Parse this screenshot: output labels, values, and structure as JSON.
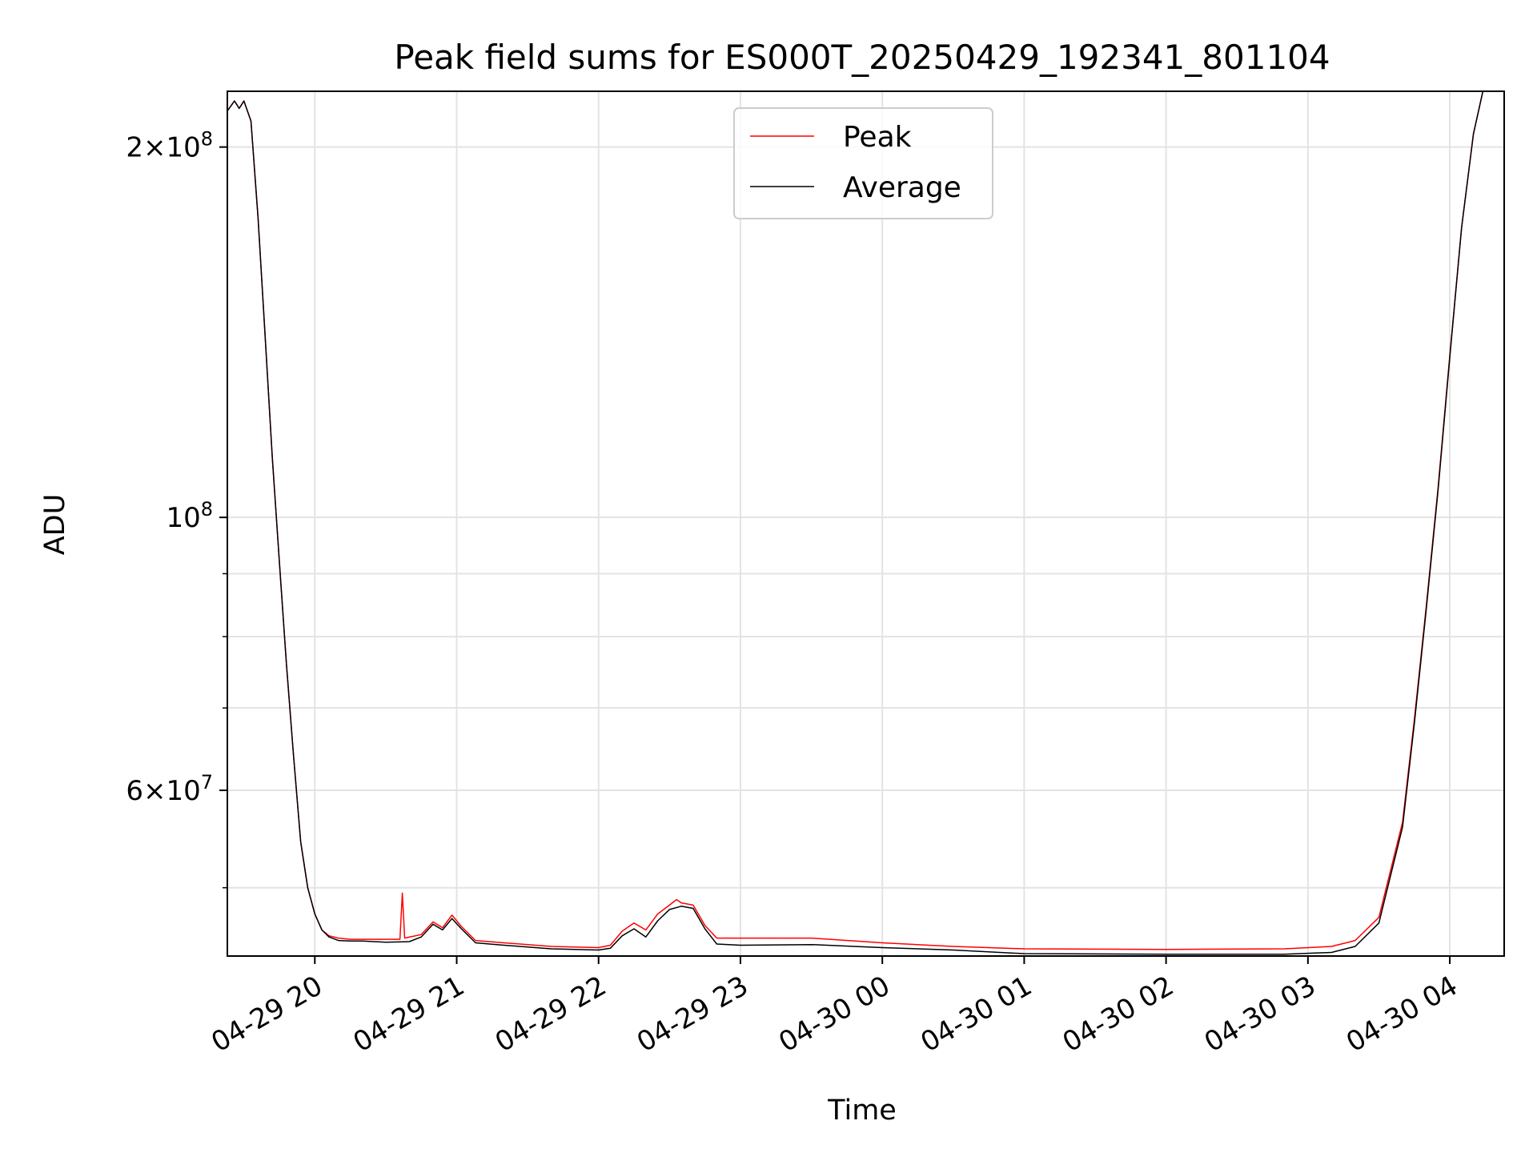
{
  "chart_data": {
    "type": "line",
    "title": "Peak field sums for ES000T_20250429_192341_801104",
    "xlabel": "Time",
    "ylabel": "ADU",
    "x_axis_type": "time",
    "xlim": [
      "2025-04-29 19:23",
      "2025-04-30 04:23"
    ],
    "ylim": [
      44000000,
      222000000
    ],
    "yscale": "log",
    "grid": true,
    "x_ticks": [
      "04-29 20",
      "04-29 21",
      "04-29 22",
      "04-29 23",
      "04-30 00",
      "04-30 01",
      "04-30 02",
      "04-30 03",
      "04-30 04"
    ],
    "x_tick_times": [
      "2025-04-29 20:00",
      "2025-04-29 21:00",
      "2025-04-29 22:00",
      "2025-04-29 23:00",
      "2025-04-30 00:00",
      "2025-04-30 01:00",
      "2025-04-30 02:00",
      "2025-04-30 03:00",
      "2025-04-30 04:00"
    ],
    "y_major_ticks": [
      {
        "value": 200000000,
        "mantissa": "2",
        "exponent": "8"
      },
      {
        "value": 100000000,
        "mantissa": "",
        "exponent": "8"
      },
      {
        "value": 60000000,
        "mantissa": "6",
        "exponent": "7"
      }
    ],
    "y_minor_ticks": [
      50000000,
      70000000,
      80000000,
      90000000
    ],
    "legend": {
      "position": "upper center",
      "entries": [
        {
          "label": "Peak",
          "color": "#ff0000"
        },
        {
          "label": "Average",
          "color": "#000000"
        }
      ]
    },
    "series": [
      {
        "name": "Average",
        "color": "#000000",
        "x": [
          "2025-04-29 19:23",
          "2025-04-29 19:26",
          "2025-04-29 19:28",
          "2025-04-29 19:30",
          "2025-04-29 19:33",
          "2025-04-29 19:36",
          "2025-04-29 19:39",
          "2025-04-29 19:42",
          "2025-04-29 19:45",
          "2025-04-29 19:48",
          "2025-04-29 19:51",
          "2025-04-29 19:54",
          "2025-04-29 19:57",
          "2025-04-29 20:00",
          "2025-04-29 20:03",
          "2025-04-29 20:06",
          "2025-04-29 20:10",
          "2025-04-29 20:15",
          "2025-04-29 20:20",
          "2025-04-29 20:30",
          "2025-04-29 20:40",
          "2025-04-29 20:45",
          "2025-04-29 20:50",
          "2025-04-29 20:54",
          "2025-04-29 20:58",
          "2025-04-29 21:02",
          "2025-04-29 21:08",
          "2025-04-29 21:20",
          "2025-04-29 21:40",
          "2025-04-29 22:00",
          "2025-04-29 22:05",
          "2025-04-29 22:10",
          "2025-04-29 22:15",
          "2025-04-29 22:20",
          "2025-04-29 22:25",
          "2025-04-29 22:30",
          "2025-04-29 22:35",
          "2025-04-29 22:40",
          "2025-04-29 22:45",
          "2025-04-29 22:50",
          "2025-04-29 23:00",
          "2025-04-29 23:30",
          "2025-04-30 00:00",
          "2025-04-30 00:30",
          "2025-04-30 01:00",
          "2025-04-30 02:00",
          "2025-04-30 02:50",
          "2025-04-30 03:10",
          "2025-04-30 03:20",
          "2025-04-30 03:30",
          "2025-04-30 03:40",
          "2025-04-30 03:45",
          "2025-04-30 03:50",
          "2025-04-30 03:55",
          "2025-04-30 04:00",
          "2025-04-30 04:05",
          "2025-04-30 04:10",
          "2025-04-30 04:14",
          "2025-04-30 04:23"
        ],
        "y": [
          214000000,
          218000000,
          215000000,
          218000000,
          210000000,
          175000000,
          140000000,
          112000000,
          92000000,
          76000000,
          64000000,
          54500000,
          50000000,
          47600000,
          46200000,
          45600000,
          45300000,
          45250000,
          45250000,
          45150000,
          45200000,
          45600000,
          46700000,
          46200000,
          47200000,
          46300000,
          45100000,
          44900000,
          44600000,
          44500000,
          44650000,
          45700000,
          46300000,
          45600000,
          47000000,
          48000000,
          48300000,
          48100000,
          46300000,
          45000000,
          44900000,
          44950000,
          44700000,
          44500000,
          44200000,
          44150000,
          44150000,
          44300000,
          44800000,
          46800000,
          56000000,
          68000000,
          84000000,
          105000000,
          135000000,
          172000000,
          205000000,
          222000000,
          222000000
        ]
      },
      {
        "name": "Peak",
        "color": "#ff0000",
        "x": [
          "2025-04-29 19:23",
          "2025-04-29 19:26",
          "2025-04-29 19:28",
          "2025-04-29 19:30",
          "2025-04-29 19:33",
          "2025-04-29 19:36",
          "2025-04-29 19:39",
          "2025-04-29 19:42",
          "2025-04-29 19:45",
          "2025-04-29 19:48",
          "2025-04-29 19:51",
          "2025-04-29 19:54",
          "2025-04-29 19:57",
          "2025-04-29 20:00",
          "2025-04-29 20:03",
          "2025-04-29 20:06",
          "2025-04-29 20:10",
          "2025-04-29 20:15",
          "2025-04-29 20:20",
          "2025-04-29 20:36",
          "2025-04-29 20:37",
          "2025-04-29 20:38",
          "2025-04-29 20:45",
          "2025-04-29 20:50",
          "2025-04-29 20:54",
          "2025-04-29 20:58",
          "2025-04-29 21:02",
          "2025-04-29 21:08",
          "2025-04-29 21:20",
          "2025-04-29 21:40",
          "2025-04-29 22:00",
          "2025-04-29 22:05",
          "2025-04-29 22:10",
          "2025-04-29 22:15",
          "2025-04-29 22:20",
          "2025-04-29 22:25",
          "2025-04-29 22:30",
          "2025-04-29 22:33",
          "2025-04-29 22:35",
          "2025-04-29 22:40",
          "2025-04-29 22:45",
          "2025-04-29 22:50",
          "2025-04-29 23:00",
          "2025-04-29 23:30",
          "2025-04-30 00:00",
          "2025-04-30 00:30",
          "2025-04-30 01:00",
          "2025-04-30 02:00",
          "2025-04-30 02:50",
          "2025-04-30 03:10",
          "2025-04-30 03:20",
          "2025-04-30 03:30",
          "2025-04-30 03:40",
          "2025-04-30 03:45",
          "2025-04-30 03:50",
          "2025-04-30 03:55",
          "2025-04-30 04:00",
          "2025-04-30 04:05",
          "2025-04-30 04:10",
          "2025-04-30 04:14",
          "2025-04-30 04:23"
        ],
        "y": [
          214000000,
          218000000,
          215000000,
          218000000,
          210000000,
          175000000,
          140000000,
          112000000,
          92000000,
          76000000,
          64000000,
          54500000,
          50000000,
          47600000,
          46200000,
          45700000,
          45500000,
          45400000,
          45400000,
          45400000,
          49500000,
          45500000,
          45800000,
          46900000,
          46400000,
          47500000,
          46500000,
          45300000,
          45100000,
          44800000,
          44700000,
          44900000,
          46100000,
          46800000,
          46200000,
          47600000,
          48400000,
          48900000,
          48600000,
          48400000,
          46600000,
          45500000,
          45500000,
          45500000,
          45100000,
          44800000,
          44600000,
          44550000,
          44600000,
          44800000,
          45300000,
          47300000,
          56500000,
          68500000,
          84500000,
          105500000,
          135500000,
          172000000,
          205000000,
          222000000,
          222000000
        ]
      }
    ]
  }
}
